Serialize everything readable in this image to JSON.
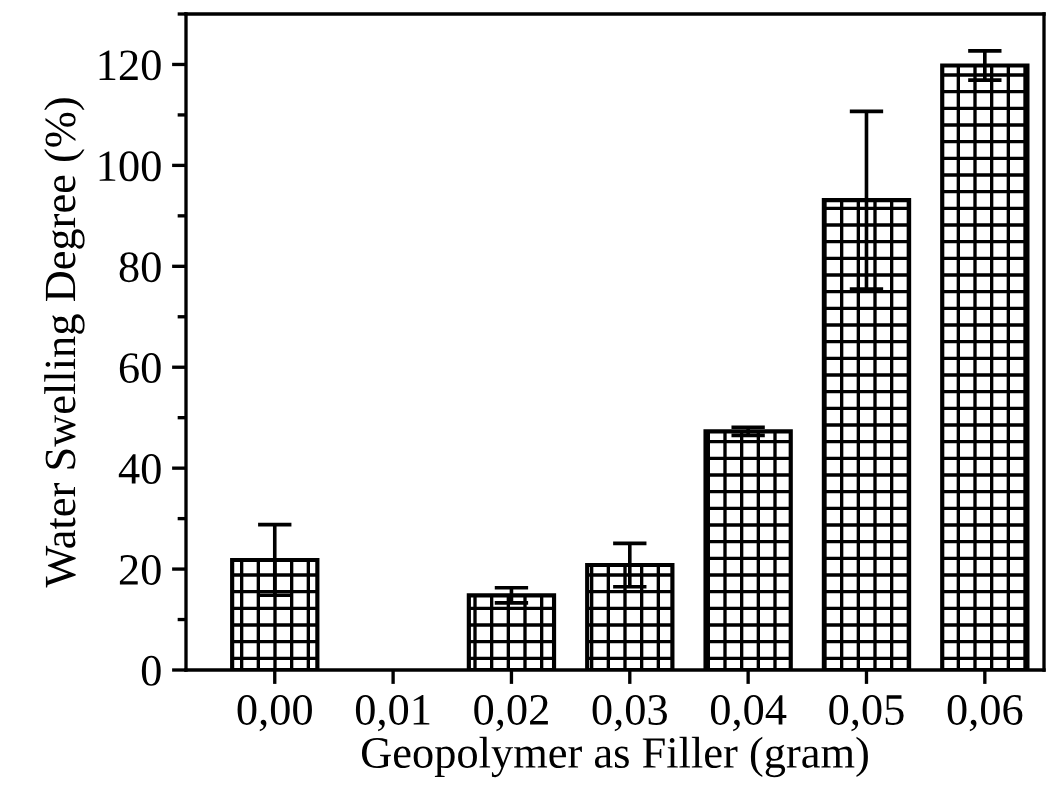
{
  "chart_data": {
    "type": "bar",
    "xlabel": "Geopolymer as Filler (gram)",
    "ylabel": "Water Swelling Degree (%)",
    "categories": [
      "0,00",
      "0,01",
      "0,02",
      "0,03",
      "0,04",
      "0,05",
      "0,06"
    ],
    "values": [
      21.8,
      null,
      14.8,
      20.8,
      47.3,
      93.1,
      119.8
    ],
    "errors": [
      7,
      null,
      1.5,
      4.3,
      0.8,
      17.6,
      2.9
    ],
    "color": "#000000",
    "ylim": [
      0,
      130
    ],
    "yticks": [
      0,
      20,
      40,
      60,
      80,
      100,
      120
    ],
    "grid": false
  }
}
